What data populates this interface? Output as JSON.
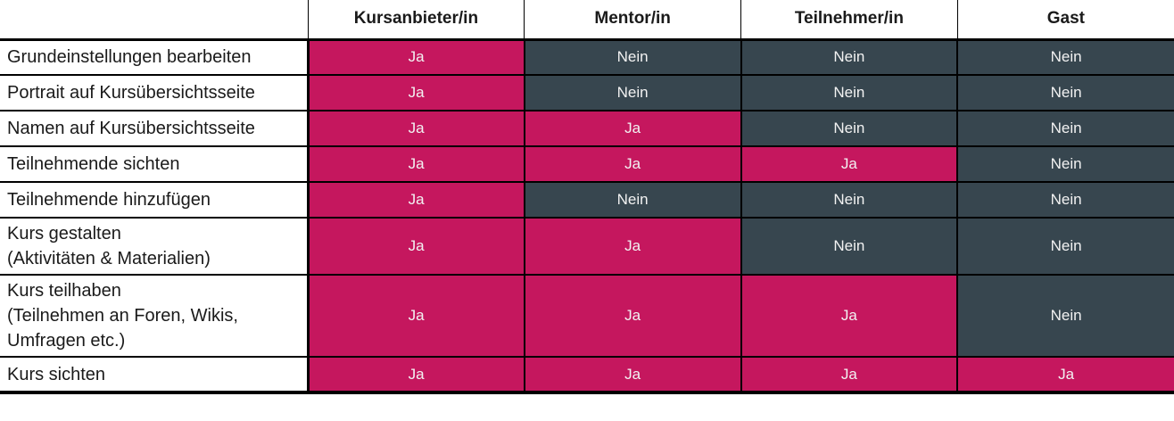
{
  "colors": {
    "yes_bg": "#C5175E",
    "no_bg": "#37464F",
    "value_text": "#F2F2F2",
    "border": "#000000",
    "label_text": "#1A1A1A"
  },
  "table": {
    "corner_label": "",
    "columns": [
      {
        "label": "Kursanbieter/in"
      },
      {
        "label": "Mentor/in"
      },
      {
        "label": "Teilnehmer/in"
      },
      {
        "label": "Gast"
      }
    ],
    "rows": [
      {
        "label": "Grundeinstellungen bearbeiten",
        "values": [
          "Ja",
          "Nein",
          "Nein",
          "Nein"
        ]
      },
      {
        "label": "Portrait auf Kursübersichtsseite",
        "values": [
          "Ja",
          "Nein",
          "Nein",
          "Nein"
        ]
      },
      {
        "label": "Namen auf Kursübersichtsseite",
        "values": [
          "Ja",
          "Ja",
          "Nein",
          "Nein"
        ]
      },
      {
        "label": "Teilnehmende sichten",
        "values": [
          "Ja",
          "Ja",
          "Ja",
          "Nein"
        ]
      },
      {
        "label": "Teilnehmende hinzufügen",
        "values": [
          "Ja",
          "Nein",
          "Nein",
          "Nein"
        ]
      },
      {
        "label": "Kurs gestalten\n(Aktivitäten & Materialien)",
        "values": [
          "Ja",
          "Ja",
          "Nein",
          "Nein"
        ]
      },
      {
        "label": "Kurs teilhaben\n(Teilnehmen an Foren, Wikis,\nUmfragen etc.)",
        "values": [
          "Ja",
          "Ja",
          "Ja",
          "Nein"
        ]
      },
      {
        "label": "Kurs sichten",
        "values": [
          "Ja",
          "Ja",
          "Ja",
          "Ja"
        ]
      }
    ],
    "value_yes": "Ja",
    "value_no": "Nein"
  }
}
